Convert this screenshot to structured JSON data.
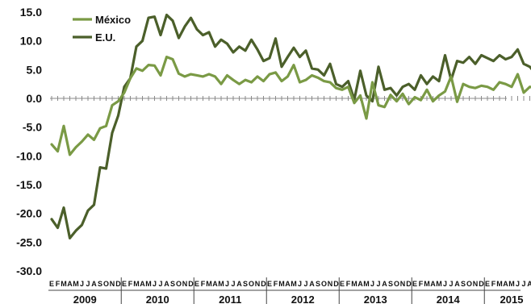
{
  "chart_data": {
    "type": "line",
    "title": "",
    "xlabel": "",
    "ylabel": "",
    "ylim": [
      -30,
      15
    ],
    "yticks": [
      "15.0",
      "10.0",
      "5.0",
      "0.0",
      "-5.0",
      "-10.0",
      "-15.0",
      "-20.0",
      "-25.0",
      "-30.0"
    ],
    "month_labels": [
      "E",
      "F",
      "M",
      "A",
      "M",
      "J",
      "J",
      "A",
      "S",
      "O",
      "N",
      "D"
    ],
    "years": [
      "2009",
      "2010",
      "2011",
      "2012",
      "2013",
      "2014",
      "2015"
    ],
    "legend_position": "top-left",
    "grid": false,
    "series": [
      {
        "name": "México",
        "color": "#7a9a45",
        "values": [
          -8.0,
          -9.2,
          -4.8,
          -9.8,
          -8.5,
          -7.5,
          -6.3,
          -7.2,
          -5.2,
          -4.8,
          -1.2,
          -0.5,
          1.0,
          3.5,
          5.2,
          4.8,
          5.8,
          5.7,
          4.0,
          7.2,
          6.8,
          4.3,
          3.8,
          4.2,
          4.0,
          3.8,
          4.2,
          3.8,
          2.5,
          4.0,
          3.2,
          2.5,
          3.2,
          2.8,
          3.8,
          3.0,
          4.2,
          4.5,
          3.0,
          3.8,
          5.8,
          2.8,
          3.2,
          4.0,
          3.6,
          3.0,
          2.8,
          1.8,
          1.5,
          2.0,
          -0.8,
          0.5,
          -3.5,
          2.8,
          -1.2,
          -1.5,
          0.6,
          -0.5,
          0.8,
          -1.0,
          0.2,
          -0.3,
          1.5,
          -0.5,
          0.5,
          1.2,
          3.8,
          -0.6,
          2.5,
          2.0,
          1.8,
          2.2,
          2.0,
          1.5,
          2.8,
          2.5,
          2.0,
          4.2,
          1.0,
          2.0,
          1.8
        ],
        "legend_label": "México"
      },
      {
        "name": "E.U.",
        "color": "#4b5f2a",
        "values": [
          -21.0,
          -22.5,
          -19.0,
          -24.3,
          -23.0,
          -22.0,
          -19.5,
          -18.5,
          -12.0,
          -12.2,
          -6.0,
          -3.0,
          2.0,
          3.5,
          9.0,
          10.0,
          14.0,
          14.2,
          11.0,
          14.5,
          13.5,
          10.5,
          12.5,
          14.0,
          12.0,
          11.0,
          11.5,
          9.0,
          10.2,
          9.5,
          8.0,
          9.0,
          8.3,
          10.2,
          8.5,
          6.5,
          7.0,
          10.4,
          5.5,
          7.2,
          8.8,
          7.2,
          8.3,
          5.2,
          5.0,
          4.0,
          6.0,
          2.5,
          2.0,
          3.0,
          -0.2,
          4.8,
          0.5,
          -0.5,
          5.5,
          1.5,
          1.8,
          0.5,
          2.0,
          2.5,
          1.5,
          4.0,
          2.5,
          3.8,
          3.0,
          7.5,
          3.2,
          6.5,
          6.2,
          7.2,
          6.0,
          7.5,
          7.0,
          6.5,
          7.5,
          6.8,
          7.2,
          8.5,
          6.0,
          5.5,
          4.2
        ],
        "legend_label": "E.U."
      }
    ]
  }
}
